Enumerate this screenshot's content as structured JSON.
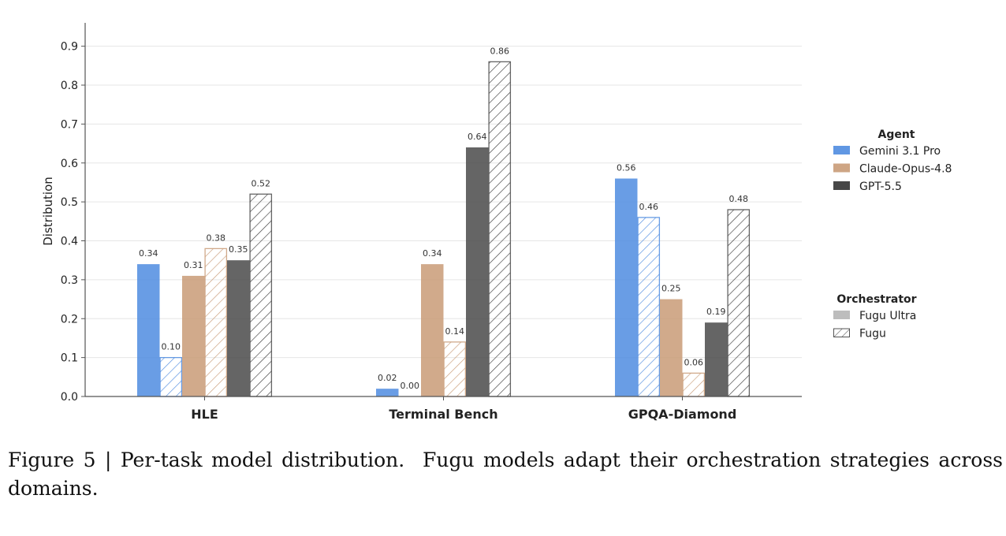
{
  "chart_data": {
    "type": "bar",
    "title": "",
    "xlabel": "",
    "ylabel": "Distribution",
    "ylim": [
      0,
      0.96
    ],
    "yticks": [
      0.0,
      0.1,
      0.2,
      0.3,
      0.4,
      0.5,
      0.6,
      0.7,
      0.8,
      0.9
    ],
    "grid": "horizontal",
    "categories": [
      "HLE",
      "Terminal Bench",
      "GPQA-Diamond"
    ],
    "series": [
      {
        "name": "Gemini 3.1 Pro",
        "orchestrator": "Fugu Ultra",
        "color": "#4f8ce0",
        "hatched": false,
        "values": [
          0.34,
          0.02,
          0.56
        ]
      },
      {
        "name": "Gemini 3.1 Pro",
        "orchestrator": "Fugu",
        "color": "#4f8ce0",
        "hatched": true,
        "values": [
          0.1,
          0.0,
          0.46
        ]
      },
      {
        "name": "Claude-Opus-4.8",
        "orchestrator": "Fugu Ultra",
        "color": "#c99b77",
        "hatched": false,
        "values": [
          0.31,
          0.34,
          0.25
        ]
      },
      {
        "name": "Claude-Opus-4.8",
        "orchestrator": "Fugu",
        "color": "#c99b77",
        "hatched": true,
        "values": [
          0.38,
          0.14,
          0.06
        ]
      },
      {
        "name": "GPT-5.5",
        "orchestrator": "Fugu Ultra",
        "color": "#4a4a4a",
        "hatched": false,
        "values": [
          0.35,
          0.64,
          0.19
        ]
      },
      {
        "name": "GPT-5.5",
        "orchestrator": "Fugu",
        "color": "#4a4a4a",
        "hatched": true,
        "values": [
          0.52,
          0.86,
          0.48
        ]
      }
    ],
    "legend": {
      "placement": "right",
      "agent_title": "Agent",
      "agents": [
        {
          "label": "Gemini 3.1 Pro",
          "color": "#4f8ce0"
        },
        {
          "label": "Claude-Opus-4.8",
          "color": "#c99b77"
        },
        {
          "label": "GPT-5.5",
          "color": "#333333"
        }
      ],
      "orchestrator_title": "Orchestrator",
      "orchestrators": [
        {
          "label": "Fugu Ultra",
          "style": "solid"
        },
        {
          "label": "Fugu",
          "style": "hatched"
        }
      ]
    }
  },
  "caption": {
    "figure_label": "Figure 5 | Per-task model distribution.",
    "text": "  Fugu models adapt their orchestration strategies across domains."
  }
}
